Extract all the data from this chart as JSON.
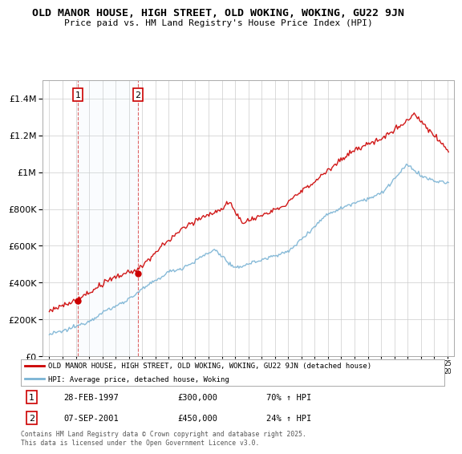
{
  "title": "OLD MANOR HOUSE, HIGH STREET, OLD WOKING, WOKING, GU22 9JN",
  "subtitle": "Price paid vs. HM Land Registry's House Price Index (HPI)",
  "sale1_date": "28-FEB-1997",
  "sale1_price": 300000,
  "sale1_hpi": "70% ↑ HPI",
  "sale1_x": 1997.16,
  "sale2_date": "07-SEP-2001",
  "sale2_price": 450000,
  "sale2_hpi": "24% ↑ HPI",
  "sale2_x": 2001.69,
  "hpi_color": "#7ab3d4",
  "price_color": "#cc0000",
  "vline_color": "#cc0000",
  "background_color": "#ffffff",
  "grid_color": "#cccccc",
  "legend_label_price": "OLD MANOR HOUSE, HIGH STREET, OLD WOKING, WOKING, GU22 9JN (detached house)",
  "legend_label_hpi": "HPI: Average price, detached house, Woking",
  "footer": "Contains HM Land Registry data © Crown copyright and database right 2025.\nThis data is licensed under the Open Government Licence v3.0.",
  "xmin": 1994.5,
  "xmax": 2025.5,
  "ymin": 0,
  "ymax": 1500000
}
